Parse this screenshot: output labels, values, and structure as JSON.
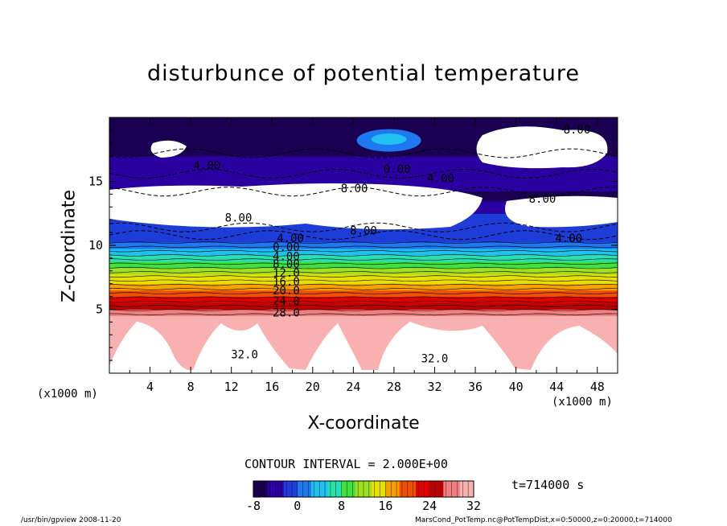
{
  "chart_data": {
    "type": "heatmap",
    "title": "disturbunce of potential temperature",
    "xlabel": "X-coordinate",
    "ylabel": "Z-coordinate",
    "x_unit_left": "(x1000 m)",
    "x_unit_right": "(x1000 m)",
    "xlim": [
      0,
      50
    ],
    "ylim": [
      0,
      20
    ],
    "x_ticks": [
      "4",
      "8",
      "12",
      "16",
      "20",
      "24",
      "28",
      "32",
      "36",
      "40",
      "44",
      "48"
    ],
    "y_ticks": [
      "5",
      "10",
      "15"
    ],
    "contour_interval": "CONTOUR INTERVAL = 2.000E+00",
    "colorbar": {
      "ticks": [
        "-8",
        "0",
        "8",
        "16",
        "24",
        "32"
      ],
      "range": [
        -8,
        32
      ],
      "colors": [
        "#1a0050",
        "#2a00a0",
        "#1e3cd8",
        "#1e78f0",
        "#20c0f0",
        "#28e0b0",
        "#40e040",
        "#a0e020",
        "#e8e000",
        "#f8a000",
        "#f05000",
        "#e00000",
        "#c00000",
        "#f08080",
        "#f8b0b0"
      ]
    },
    "contour_labels": [
      {
        "text": "8.00",
        "x": 46.0,
        "z": 19.0
      },
      {
        "text": "4.00",
        "x": 9.6,
        "z": 16.2
      },
      {
        "text": "0.00",
        "x": 28.3,
        "z": 15.9
      },
      {
        "text": "4.00",
        "x": 32.6,
        "z": 15.2
      },
      {
        "text": "8.00",
        "x": 24.1,
        "z": 14.4
      },
      {
        "text": "8.00",
        "x": 42.6,
        "z": 13.6
      },
      {
        "text": "8.00",
        "x": 12.7,
        "z": 12.1
      },
      {
        "text": "8.00",
        "x": 25.0,
        "z": 11.1
      },
      {
        "text": "4.00",
        "x": 45.2,
        "z": 10.5
      },
      {
        "text": "4.00",
        "x": 17.8,
        "z": 10.5
      },
      {
        "text": "0.00",
        "x": 17.4,
        "z": 9.8
      },
      {
        "text": "4.00",
        "x": 17.4,
        "z": 9.1
      },
      {
        "text": "8.00",
        "x": 17.4,
        "z": 8.5
      },
      {
        "text": "12.0",
        "x": 17.4,
        "z": 7.8
      },
      {
        "text": "16.0",
        "x": 17.4,
        "z": 7.1
      },
      {
        "text": "20.0",
        "x": 17.4,
        "z": 6.4
      },
      {
        "text": "24.0",
        "x": 17.4,
        "z": 5.6
      },
      {
        "text": "28.0",
        "x": 17.4,
        "z": 4.7
      },
      {
        "text": "32.0",
        "x": 13.3,
        "z": 1.4
      },
      {
        "text": "32.0",
        "x": 32.0,
        "z": 1.1
      }
    ],
    "time": "t=714000 s"
  },
  "footer": {
    "left": "/usr/bin/gpview   2008-11-20",
    "right": "MarsCond_PotTemp.nc@PotTempDist,x=0:50000,z=0:20000,t=714000"
  }
}
